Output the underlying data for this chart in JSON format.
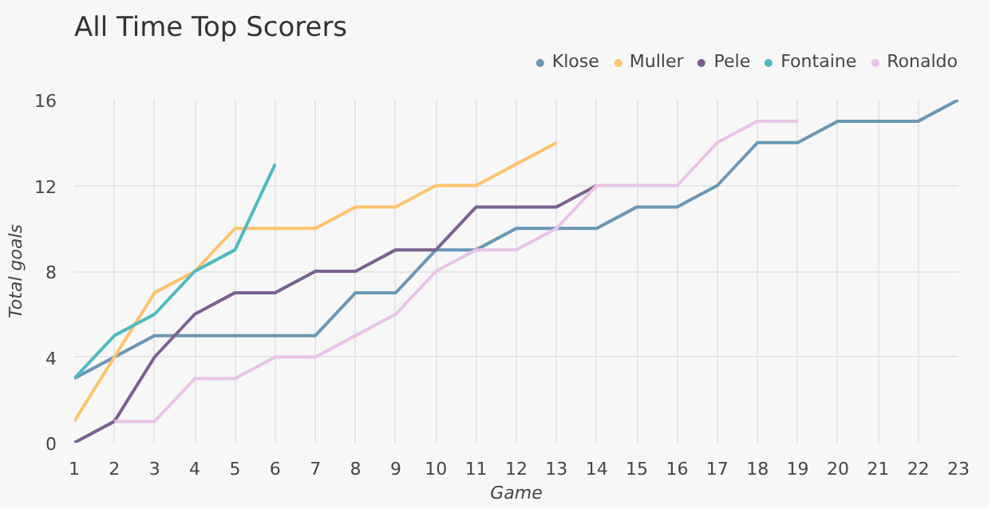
{
  "chart_data": {
    "type": "line",
    "title": "All Time Top Scorers",
    "xlabel": "Game",
    "ylabel": "Total goals",
    "x": [
      1,
      2,
      3,
      4,
      5,
      6,
      7,
      8,
      9,
      10,
      11,
      12,
      13,
      14,
      15,
      16,
      17,
      18,
      19,
      20,
      21,
      22,
      23
    ],
    "series": [
      {
        "name": "Klose",
        "color": "#6b97b5",
        "values": [
          3,
          4,
          5,
          5,
          5,
          5,
          5,
          7,
          7,
          9,
          9,
          10,
          10,
          10,
          11,
          11,
          12,
          14,
          14,
          15,
          15,
          15,
          16
        ]
      },
      {
        "name": "Muller",
        "color": "#fdc46e",
        "x": [
          1,
          2,
          3,
          4,
          5,
          6,
          7,
          8,
          9,
          10,
          11,
          12,
          13
        ],
        "values": [
          1,
          4,
          7,
          8,
          10,
          10,
          10,
          11,
          11,
          12,
          12,
          13,
          14
        ]
      },
      {
        "name": "Pele",
        "color": "#7a6190",
        "x": [
          1,
          2,
          3,
          4,
          5,
          6,
          7,
          8,
          9,
          10,
          11,
          12,
          13,
          14
        ],
        "values": [
          0,
          1,
          4,
          6,
          7,
          7,
          8,
          8,
          9,
          9,
          11,
          11,
          11,
          12
        ]
      },
      {
        "name": "Fontaine",
        "color": "#4dbbbf",
        "x": [
          1,
          2,
          3,
          4,
          5,
          6
        ],
        "values": [
          3,
          5,
          6,
          8,
          9,
          13
        ]
      },
      {
        "name": "Ronaldo",
        "color": "#e9c3e6",
        "x": [
          2,
          3,
          4,
          5,
          6,
          7,
          8,
          9,
          10,
          11,
          12,
          13,
          14,
          15,
          16,
          17,
          18,
          19
        ],
        "values": [
          1,
          1,
          3,
          3,
          4,
          4,
          5,
          6,
          8,
          9,
          9,
          10,
          12,
          12,
          12,
          14,
          15,
          15
        ]
      }
    ],
    "xlim": [
      1,
      23
    ],
    "ylim": [
      0,
      16
    ],
    "xticks": [
      1,
      2,
      3,
      4,
      5,
      6,
      7,
      8,
      9,
      10,
      11,
      12,
      13,
      14,
      15,
      16,
      17,
      18,
      19,
      20,
      21,
      22,
      23
    ],
    "yticks": [
      0,
      4,
      8,
      12,
      16
    ],
    "grid": true,
    "legend": "top right",
    "marker": "none",
    "line_style": "solid"
  }
}
